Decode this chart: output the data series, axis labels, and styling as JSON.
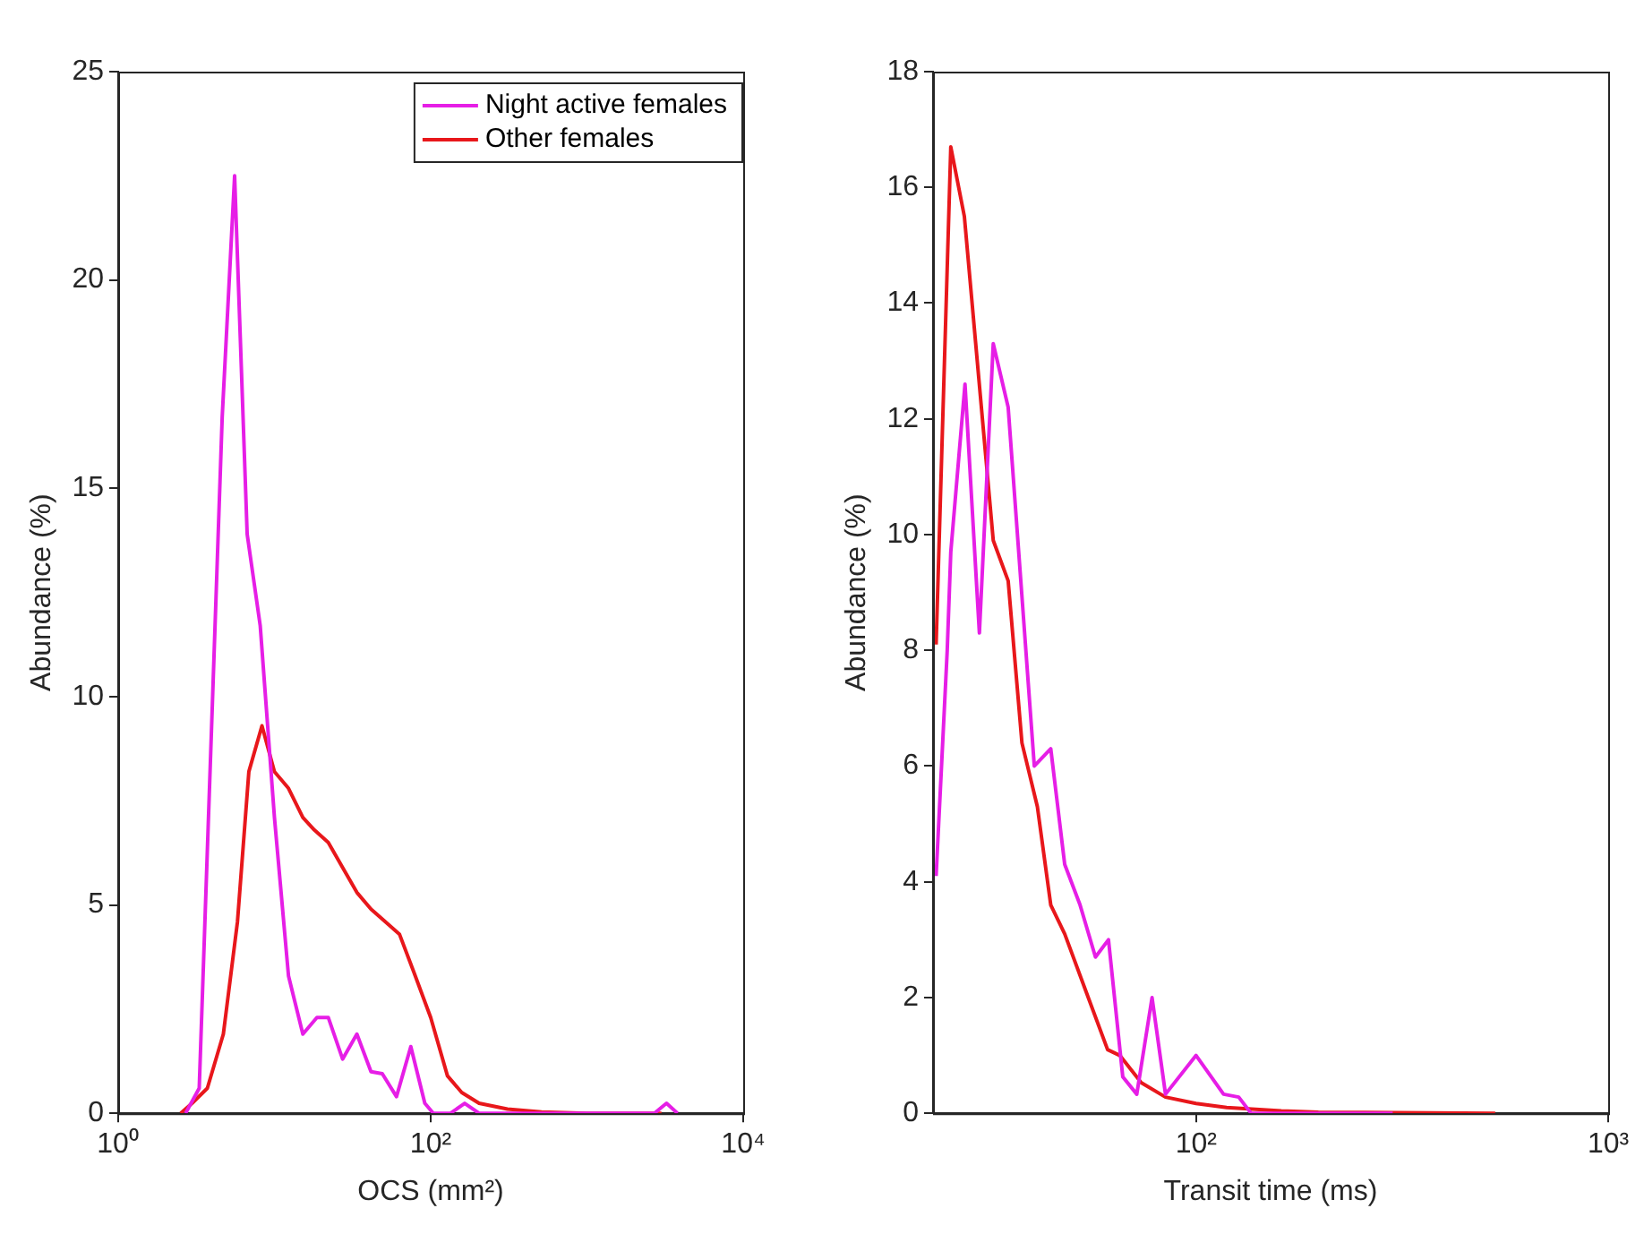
{
  "chart_data": [
    {
      "type": "line",
      "xlabel": "OCS (mm²)",
      "ylabel": "Abundance (%)",
      "log": "x",
      "xlim": [
        1,
        10000
      ],
      "xticks": [
        {
          "value": 1,
          "label": "10⁰"
        },
        {
          "value": 100,
          "label": "10²"
        },
        {
          "value": 10000,
          "label": "10⁴"
        }
      ],
      "ylim": [
        0,
        25
      ],
      "yticks": [
        0,
        5,
        10,
        15,
        20,
        25
      ],
      "legend": "top right",
      "grid": false,
      "series": [
        {
          "name": "Night active females",
          "color": "#e61ee6",
          "x": [
            2.7,
            3.3,
            4.63,
            5.56,
            6.69,
            8.11,
            10,
            12.3,
            15.2,
            18.7,
            22.1,
            27.3,
            33.7,
            41.5,
            49,
            60.4,
            74.6,
            91.7,
            104,
            134,
            165,
            204,
            500,
            2700,
            3230,
            3800
          ],
          "values": [
            0,
            0.6,
            16.7,
            22.5,
            13.9,
            11.7,
            7.1,
            3.3,
            1.9,
            2.3,
            2.3,
            1.3,
            1.9,
            1.0,
            0.95,
            0.4,
            1.6,
            0.24,
            0,
            0,
            0.24,
            0,
            0,
            0,
            0.24,
            0
          ]
        },
        {
          "name": "Other females",
          "color": "#e8171b",
          "x": [
            2.51,
            2.97,
            3.72,
            4.71,
            5.8,
            6.86,
            8.32,
            10,
            12.3,
            15.2,
            18,
            22.1,
            27.3,
            33.7,
            41.5,
            51.2,
            63.1,
            77.8,
            100,
            128,
            158,
            204,
            310,
            512,
            1000,
            2311,
            3000
          ],
          "values": [
            0,
            0.24,
            0.6,
            1.9,
            4.6,
            8.2,
            9.3,
            8.2,
            7.8,
            7.1,
            6.8,
            6.5,
            5.9,
            5.3,
            4.9,
            4.6,
            4.3,
            3.4,
            2.3,
            0.9,
            0.5,
            0.24,
            0.1,
            0.03,
            0,
            0,
            0
          ]
        }
      ]
    },
    {
      "type": "line",
      "xlabel": "Transit time (ms)",
      "ylabel": "Abundance (%)",
      "log": "x",
      "xlim": [
        23,
        1000
      ],
      "xticks": [
        {
          "value": 100,
          "label": "10²"
        },
        {
          "value": 1000,
          "label": "10³"
        }
      ],
      "ylim": [
        0,
        18
      ],
      "yticks": [
        0,
        2,
        4,
        6,
        8,
        10,
        12,
        14,
        16,
        18
      ],
      "grid": false,
      "series": [
        {
          "color": "#e61ee6",
          "x": [
            23.4,
            24.9,
            25.4,
            27.5,
            29.8,
            32.2,
            35,
            40.5,
            44.4,
            48,
            52.3,
            57,
            61.3,
            66.4,
            71.8,
            78.2,
            84.3,
            100,
            116.6,
            126.9,
            136,
            198,
            300
          ],
          "values": [
            4.1,
            8,
            9.7,
            12.6,
            8.3,
            13.3,
            12.2,
            6.0,
            6.3,
            4.3,
            3.6,
            2.7,
            3.0,
            0.63,
            0.33,
            2.0,
            0.33,
            1.0,
            0.33,
            0.28,
            0,
            0,
            0
          ]
        },
        {
          "color": "#e8171b",
          "x": [
            23.4,
            25.4,
            27.4,
            32.2,
            35,
            37.8,
            41.2,
            44.4,
            48,
            54.1,
            61,
            65.3,
            73.6,
            84.3,
            100,
            118.6,
            161,
            198,
            532
          ],
          "values": [
            8.1,
            16.7,
            15.5,
            9.9,
            9.2,
            6.4,
            5.3,
            3.6,
            3.1,
            2.1,
            1.1,
            1.0,
            0.53,
            0.28,
            0.17,
            0.1,
            0.04,
            0.02,
            0
          ]
        }
      ]
    }
  ]
}
